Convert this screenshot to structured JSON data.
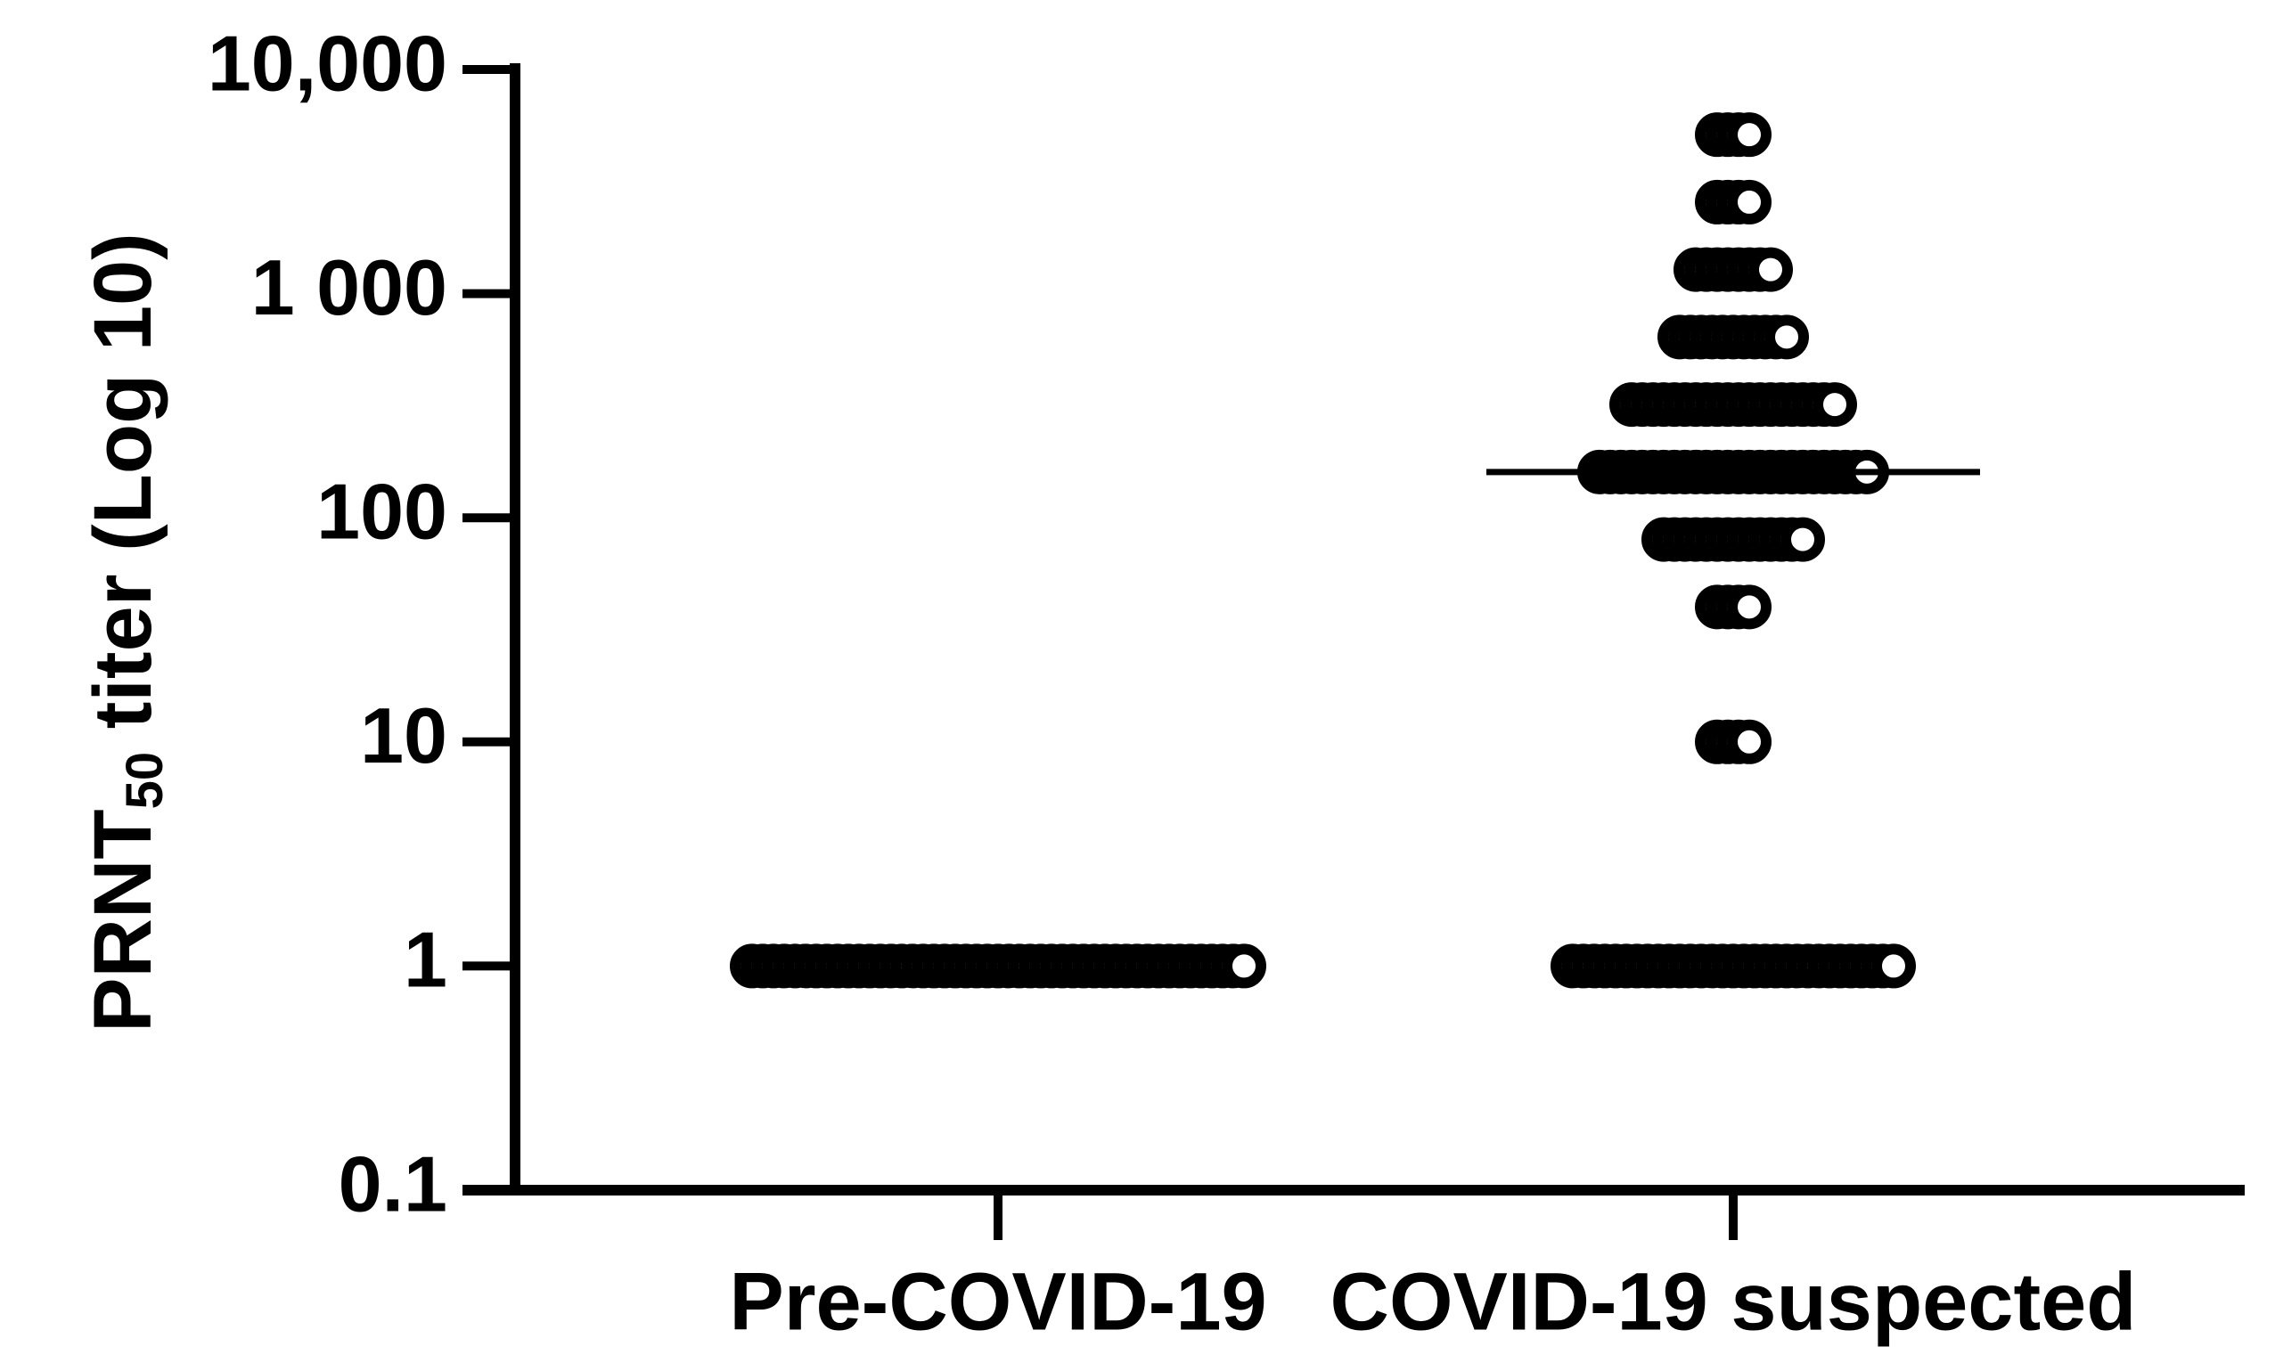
{
  "chart_data": {
    "type": "scatter",
    "title": "",
    "ylabel": {
      "main": "PRNT",
      "subscript": "50",
      "rest": " titer (Log 10)"
    },
    "xlabel": "",
    "y_scale": "log10",
    "ylim": [
      0.1,
      10000
    ],
    "y_ticks": [
      {
        "value": 0.1,
        "label": "0.1"
      },
      {
        "value": 1,
        "label": "1"
      },
      {
        "value": 10,
        "label": "10"
      },
      {
        "value": 100,
        "label": "100"
      },
      {
        "value": 1000,
        "label": "1 000"
      },
      {
        "value": 10000,
        "label": "10,000"
      }
    ],
    "categories": [
      "Pre-COVID-19",
      "COVID-19 suspected"
    ],
    "grid": false,
    "marker": "open circle",
    "colors": {
      "axis": "#000000",
      "marker_stroke": "#000000",
      "marker_fill": "#ffffff"
    },
    "groups": [
      {
        "category": "Pre-COVID-19",
        "levels": [
          {
            "y": 1,
            "count": 47
          }
        ]
      },
      {
        "category": "COVID-19 suspected",
        "median": 160,
        "levels": [
          {
            "y": 5120,
            "count": 4
          },
          {
            "y": 2560,
            "count": 4
          },
          {
            "y": 1280,
            "count": 8
          },
          {
            "y": 640,
            "count": 11
          },
          {
            "y": 320,
            "count": 20
          },
          {
            "y": 160,
            "count": 26
          },
          {
            "y": 80,
            "count": 14
          },
          {
            "y": 40,
            "count": 4
          },
          {
            "y": 10,
            "count": 4
          },
          {
            "y": 1,
            "count": 31
          }
        ]
      }
    ]
  }
}
